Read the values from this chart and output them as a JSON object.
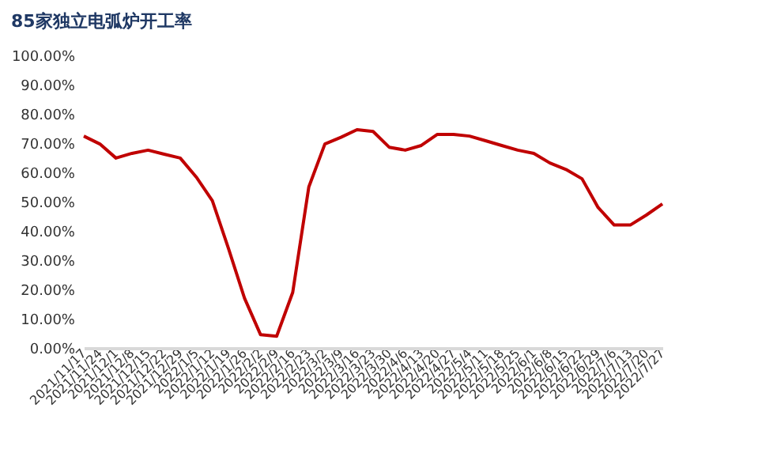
{
  "chart_data": {
    "type": "line",
    "title": "85家独立电弧炉开工率",
    "categories": [
      "2021/11/17",
      "2021/11/24",
      "2021/12/1",
      "2021/12/8",
      "2021/12/15",
      "2021/12/22",
      "2021/12/29",
      "2022/1/5",
      "2022/1/12",
      "2022/1/19",
      "2022/1/26",
      "2022/2/2",
      "2022/2/9",
      "2022/2/16",
      "2022/2/23",
      "2022/3/2",
      "2022/3/9",
      "2022/3/16",
      "2022/3/23",
      "2022/3/30",
      "2022/4/6",
      "2022/4/13",
      "2022/4/20",
      "2022/4/27",
      "2022/5/4",
      "2022/5/11",
      "2022/5/18",
      "2022/5/25",
      "2022/6/1",
      "2022/6/8",
      "2022/6/15",
      "2022/6/22",
      "2022/6/29",
      "2022/7/6",
      "2022/7/13",
      "2022/7/20",
      "2022/7/27"
    ],
    "series": [
      {
        "color": "#c00000",
        "values": [
          72.4,
          69.7,
          64.9,
          66.5,
          67.6,
          66.2,
          64.9,
          58.4,
          50.3,
          34,
          17,
          4.5,
          4,
          19,
          55,
          69.7,
          72,
          74.6,
          74,
          68.6,
          67.6,
          69.2,
          73,
          73,
          72.4,
          70.8,
          69.2,
          67.6,
          66.5,
          63.2,
          61,
          57.8,
          48,
          42,
          42,
          45.4,
          49.2
        ]
      }
    ],
    "ylim": [
      0,
      100
    ],
    "yticks": [
      {
        "value": 0,
        "label": "0.00%"
      },
      {
        "value": 10,
        "label": "10.00%"
      },
      {
        "value": 20,
        "label": "20.00%"
      },
      {
        "value": 30,
        "label": "30.00%"
      },
      {
        "value": 40,
        "label": "40.00%"
      },
      {
        "value": 50,
        "label": "50.00%"
      },
      {
        "value": 60,
        "label": "60.00%"
      },
      {
        "value": 70,
        "label": "70.00%"
      },
      {
        "value": 80,
        "label": "80.00%"
      },
      {
        "value": 90,
        "label": "90.00%"
      },
      {
        "value": 100,
        "label": "100.00%"
      }
    ],
    "grid": false,
    "legend": false,
    "marker": "none",
    "line_style": "solid"
  }
}
